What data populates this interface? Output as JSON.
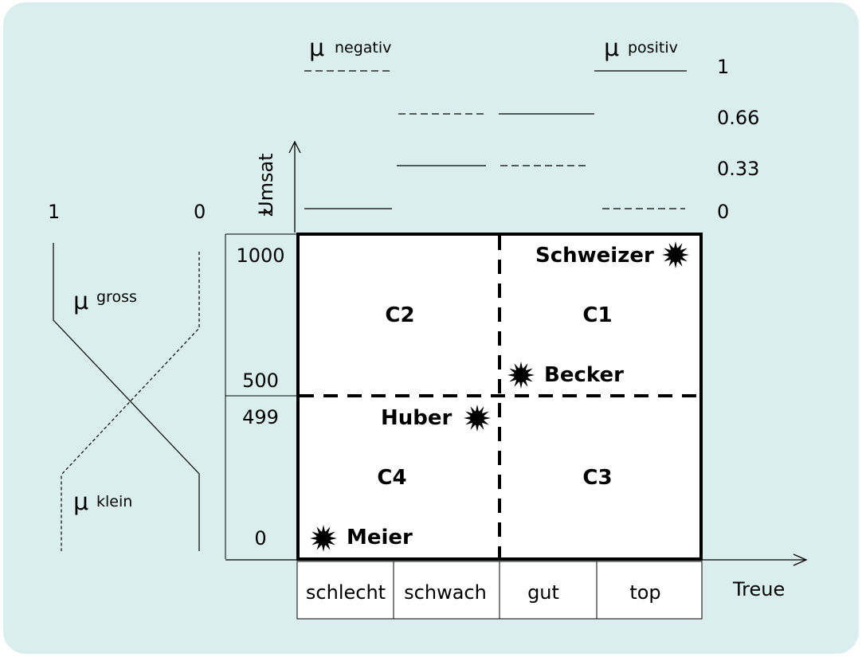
{
  "top_membership": {
    "mu_symbol": "μ",
    "negativ_label": "negativ",
    "positiv_label": "positiv",
    "levels": [
      "1",
      "0.66",
      "0.33",
      "0"
    ]
  },
  "y_axis": {
    "label": "Umsat",
    "label_tail": "z",
    "ticks": [
      "1000",
      "500",
      "499",
      "0"
    ]
  },
  "x_axis": {
    "label": "Treue",
    "categories": [
      "schlecht",
      "schwach",
      "gut",
      "top"
    ]
  },
  "left_membership": {
    "left_value": "1",
    "right_value": "0",
    "mu_symbol": "μ",
    "gross_label": "gross",
    "klein_label": "klein"
  },
  "clusters": [
    "C1",
    "C2",
    "C3",
    "C4"
  ],
  "customers": [
    "Schweizer",
    "Becker",
    "Huber",
    "Meier"
  ]
}
